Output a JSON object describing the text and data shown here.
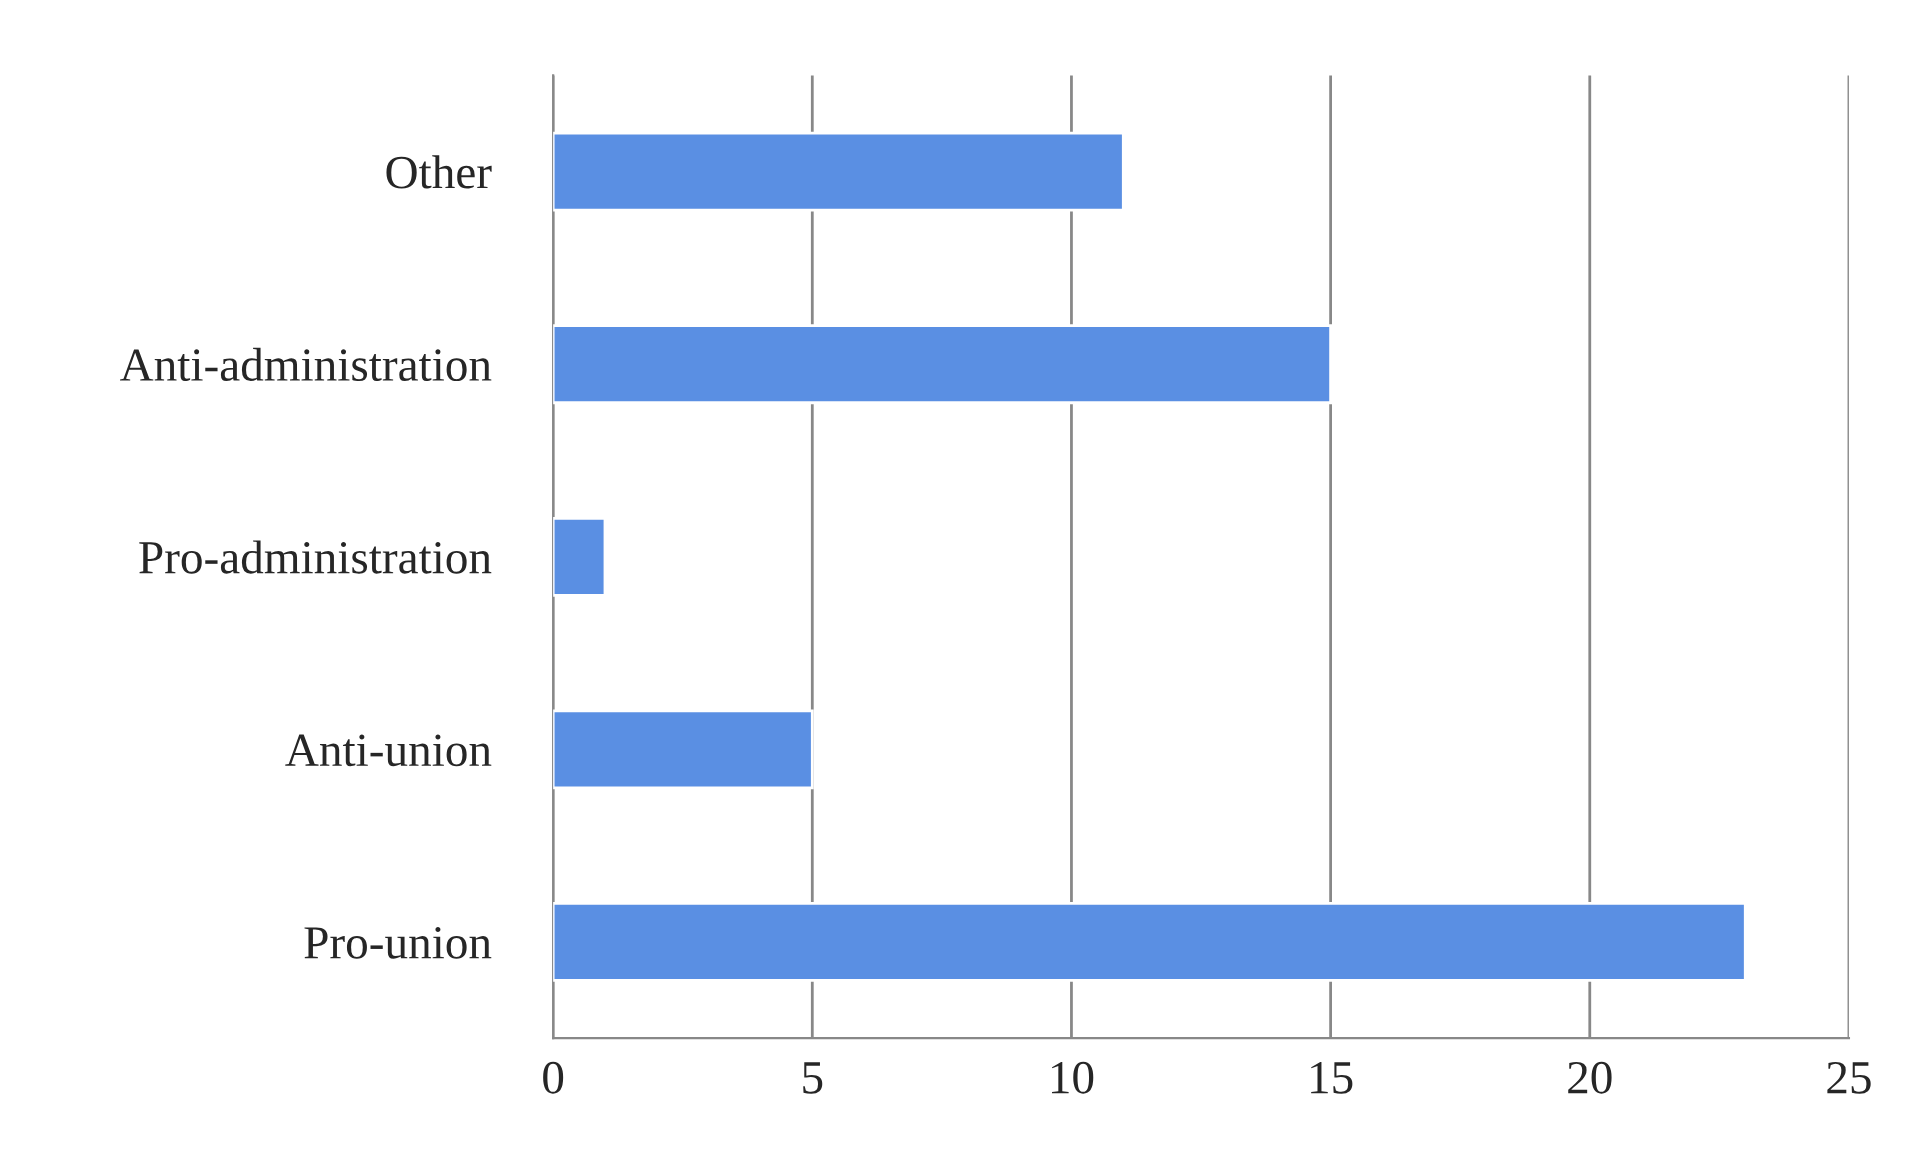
{
  "chart_data": {
    "type": "bar",
    "orientation": "horizontal",
    "categories": [
      "Other",
      "Anti-administration",
      "Pro-administration",
      "Anti-union",
      "Pro-union"
    ],
    "values": [
      11,
      15,
      1,
      5,
      23
    ],
    "color": "#5a8fe3",
    "xlim": [
      0,
      25
    ],
    "xticks": [
      0,
      5,
      10,
      15,
      20,
      25
    ],
    "grid": "x"
  }
}
